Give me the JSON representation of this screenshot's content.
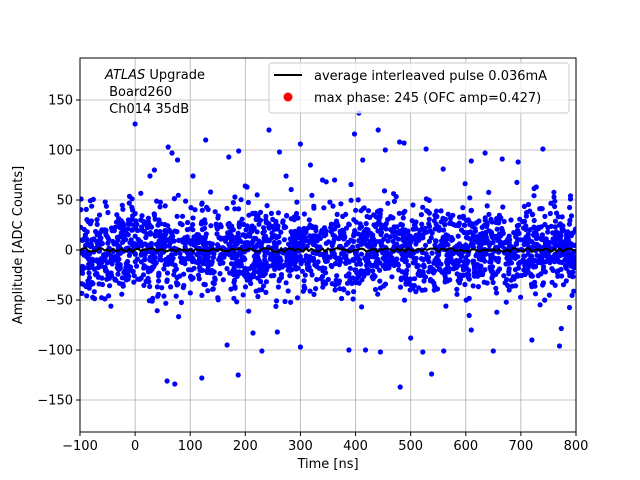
{
  "chart_data": {
    "type": "scatter",
    "title": "",
    "xlabel": "Time [ns]",
    "ylabel": "Amplitude [ADC Counts]",
    "xlim": [
      -100,
      800
    ],
    "ylim": [
      -182,
      192
    ],
    "xticks": [
      -100,
      0,
      100,
      200,
      300,
      400,
      500,
      600,
      700,
      800
    ],
    "yticks": [
      -150,
      -100,
      -50,
      0,
      50,
      100,
      150
    ],
    "grid": true,
    "legend_position": "top-right",
    "annotation": {
      "experiment": "ATLAS",
      "experiment_suffix": " Upgrade",
      "board": " Board260",
      "channel": " Ch014 35dB"
    },
    "series": [
      {
        "name": "average interleaved pulse 0.036mA",
        "kind": "line",
        "color": "#000000",
        "x_start": -100,
        "x_end": 800,
        "x_step": 5,
        "mean_level": 0,
        "approx_ripple": 2
      },
      {
        "name": "max phase: 245 (OFC amp=0.427)",
        "kind": "scatter",
        "color": "#0000ff",
        "x_range": [
          -100,
          800
        ],
        "dense_band": [
          -40,
          40
        ],
        "outer_band": [
          -80,
          70
        ],
        "approx_sigma": 22,
        "point_count": 2400,
        "outliers": [
          {
            "x": -98,
            "y": 51
          },
          {
            "x": 0,
            "y": 126
          },
          {
            "x": 27,
            "y": 74
          },
          {
            "x": 35,
            "y": 80
          },
          {
            "x": 60,
            "y": 103
          },
          {
            "x": 67,
            "y": 97
          },
          {
            "x": 77,
            "y": 90
          },
          {
            "x": 105,
            "y": 74
          },
          {
            "x": 128,
            "y": 110
          },
          {
            "x": 137,
            "y": 58
          },
          {
            "x": 170,
            "y": 93
          },
          {
            "x": 181,
            "y": 53
          },
          {
            "x": 188,
            "y": 99
          },
          {
            "x": 203,
            "y": 63
          },
          {
            "x": 243,
            "y": 120
          },
          {
            "x": 262,
            "y": 98
          },
          {
            "x": 274,
            "y": 74
          },
          {
            "x": 300,
            "y": 106
          },
          {
            "x": 318,
            "y": 85
          },
          {
            "x": 362,
            "y": 70
          },
          {
            "x": 398,
            "y": 116
          },
          {
            "x": 406,
            "y": 137
          },
          {
            "x": 413,
            "y": 90
          },
          {
            "x": 454,
            "y": 100
          },
          {
            "x": 480,
            "y": 108
          },
          {
            "x": 488,
            "y": 107
          },
          {
            "x": 528,
            "y": 101
          },
          {
            "x": 559,
            "y": 81
          },
          {
            "x": 610,
            "y": 89
          },
          {
            "x": 635,
            "y": 97
          },
          {
            "x": 666,
            "y": 91
          },
          {
            "x": 695,
            "y": 88
          },
          {
            "x": 728,
            "y": 63
          },
          {
            "x": 740,
            "y": 101
          },
          {
            "x": 760,
            "y": 53
          },
          {
            "x": 790,
            "y": 51
          },
          {
            "x": 58,
            "y": -131
          },
          {
            "x": 72,
            "y": -134
          },
          {
            "x": 121,
            "y": -128
          },
          {
            "x": 167,
            "y": -95
          },
          {
            "x": 187,
            "y": -125
          },
          {
            "x": 214,
            "y": -83
          },
          {
            "x": 230,
            "y": -101
          },
          {
            "x": 258,
            "y": -82
          },
          {
            "x": 300,
            "y": -97
          },
          {
            "x": 388,
            "y": -100
          },
          {
            "x": 418,
            "y": -100
          },
          {
            "x": 445,
            "y": -102
          },
          {
            "x": 481,
            "y": -137
          },
          {
            "x": 500,
            "y": -88
          },
          {
            "x": 522,
            "y": -102
          },
          {
            "x": 538,
            "y": -124
          },
          {
            "x": 560,
            "y": -101
          },
          {
            "x": 610,
            "y": -80
          },
          {
            "x": 650,
            "y": -101
          },
          {
            "x": 720,
            "y": -90
          },
          {
            "x": 770,
            "y": -96
          },
          {
            "x": 200,
            "y": 64
          },
          {
            "x": 441,
            "y": 120
          },
          {
            "x": 340,
            "y": 70
          }
        ]
      }
    ]
  }
}
